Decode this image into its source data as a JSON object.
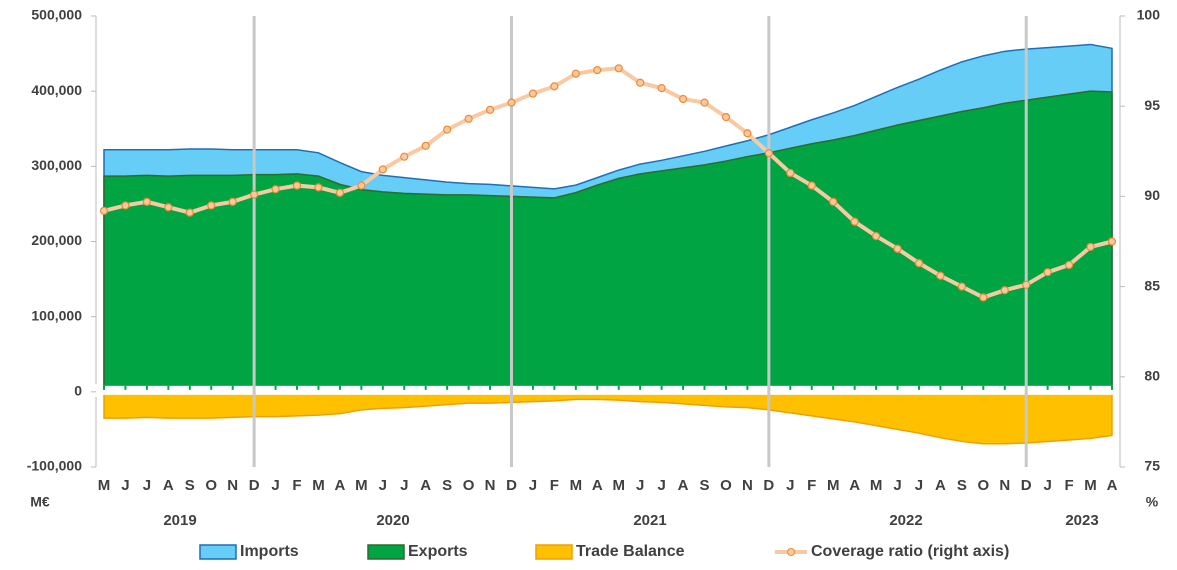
{
  "chart_data": {
    "type": "area_line",
    "categories": [
      "M",
      "J",
      "J",
      "A",
      "S",
      "O",
      "N",
      "D",
      "J",
      "F",
      "M",
      "A",
      "M",
      "J",
      "J",
      "A",
      "S",
      "O",
      "N",
      "D",
      "J",
      "F",
      "M",
      "A",
      "M",
      "J",
      "J",
      "A",
      "S",
      "O",
      "N",
      "D",
      "J",
      "F",
      "M",
      "A",
      "M",
      "J",
      "J",
      "A",
      "S",
      "O",
      "N",
      "D",
      "J",
      "F",
      "M",
      "A"
    ],
    "years": [
      "2019",
      "2020",
      "2021",
      "2022",
      "2023"
    ],
    "y_label": "M€",
    "y2_label": "%",
    "series": [
      {
        "name": "Imports",
        "type": "area",
        "color": "#66cdf6",
        "stroke": "#1f6fb5",
        "values": [
          322000,
          322000,
          322000,
          322000,
          323000,
          323000,
          322000,
          322000,
          322000,
          322000,
          318000,
          305000,
          293000,
          288000,
          285000,
          282000,
          279000,
          277000,
          276000,
          274000,
          272000,
          270000,
          275000,
          285000,
          295000,
          303000,
          308000,
          314000,
          320000,
          327000,
          334000,
          342000,
          352000,
          362000,
          371000,
          381000,
          393000,
          405000,
          416000,
          428000,
          439000,
          447000,
          453000,
          456000,
          458000,
          460000,
          462000,
          457000
        ]
      },
      {
        "name": "Exports",
        "type": "area",
        "color": "#00a443",
        "stroke": "#2e6b2e",
        "values": [
          287000,
          287000,
          288000,
          287000,
          288000,
          288000,
          288000,
          289000,
          289000,
          290000,
          287000,
          276000,
          269000,
          266000,
          264000,
          263000,
          262000,
          262000,
          261000,
          260000,
          259000,
          258000,
          265000,
          275000,
          284000,
          290000,
          294000,
          298000,
          302000,
          307000,
          313000,
          318000,
          324000,
          330000,
          335000,
          341000,
          348000,
          355000,
          361000,
          367000,
          373000,
          378000,
          384000,
          388000,
          392000,
          396000,
          400000,
          399000
        ]
      },
      {
        "name": "Trade Balance",
        "type": "area",
        "color": "#ffc000",
        "stroke": "#eea000",
        "values": [
          -35000,
          -35000,
          -34000,
          -35000,
          -35000,
          -35000,
          -34000,
          -33000,
          -33000,
          -32000,
          -31000,
          -29000,
          -24000,
          -22000,
          -21000,
          -19000,
          -17000,
          -15000,
          -15000,
          -14000,
          -13000,
          -12000,
          -10000,
          -10000,
          -11000,
          -13000,
          -14000,
          -16000,
          -18000,
          -20000,
          -21000,
          -24000,
          -28000,
          -32000,
          -36000,
          -40000,
          -45000,
          -50000,
          -55000,
          -61000,
          -66000,
          -69000,
          -69000,
          -68000,
          -66000,
          -64000,
          -62000,
          -58000
        ]
      },
      {
        "name": "Coverage ratio (right axis)",
        "type": "line",
        "axis": "y2",
        "color": "#f9c9a3",
        "marker": "#f08a30",
        "values": [
          89.2,
          89.5,
          89.7,
          89.4,
          89.1,
          89.5,
          89.7,
          90.1,
          90.4,
          90.6,
          90.5,
          90.2,
          90.6,
          91.5,
          92.2,
          92.8,
          93.7,
          94.3,
          94.8,
          95.2,
          95.7,
          96.1,
          96.8,
          97.0,
          97.1,
          96.3,
          96.0,
          95.4,
          95.2,
          94.4,
          93.5,
          92.4,
          91.3,
          90.6,
          89.7,
          88.6,
          87.8,
          87.1,
          86.3,
          85.6,
          85.0,
          84.4,
          84.8,
          85.1,
          85.8,
          86.2,
          87.2,
          87.5
        ]
      }
    ],
    "ylim": [
      -100000,
      500000
    ],
    "yticks": [
      {
        "value": -100000,
        "label": "-100,000"
      },
      0,
      {
        "value": 100000,
        "label": "100,000"
      },
      {
        "value": 200000,
        "label": "200,000"
      },
      {
        "value": 300000,
        "label": "300,000"
      },
      {
        "value": 400000,
        "label": "400,000"
      },
      {
        "value": 500000,
        "label": "500,000"
      }
    ],
    "y2lim": [
      75,
      100
    ],
    "y2ticks": [
      75,
      80,
      85,
      90,
      95,
      100
    ],
    "legend": "bottom"
  }
}
